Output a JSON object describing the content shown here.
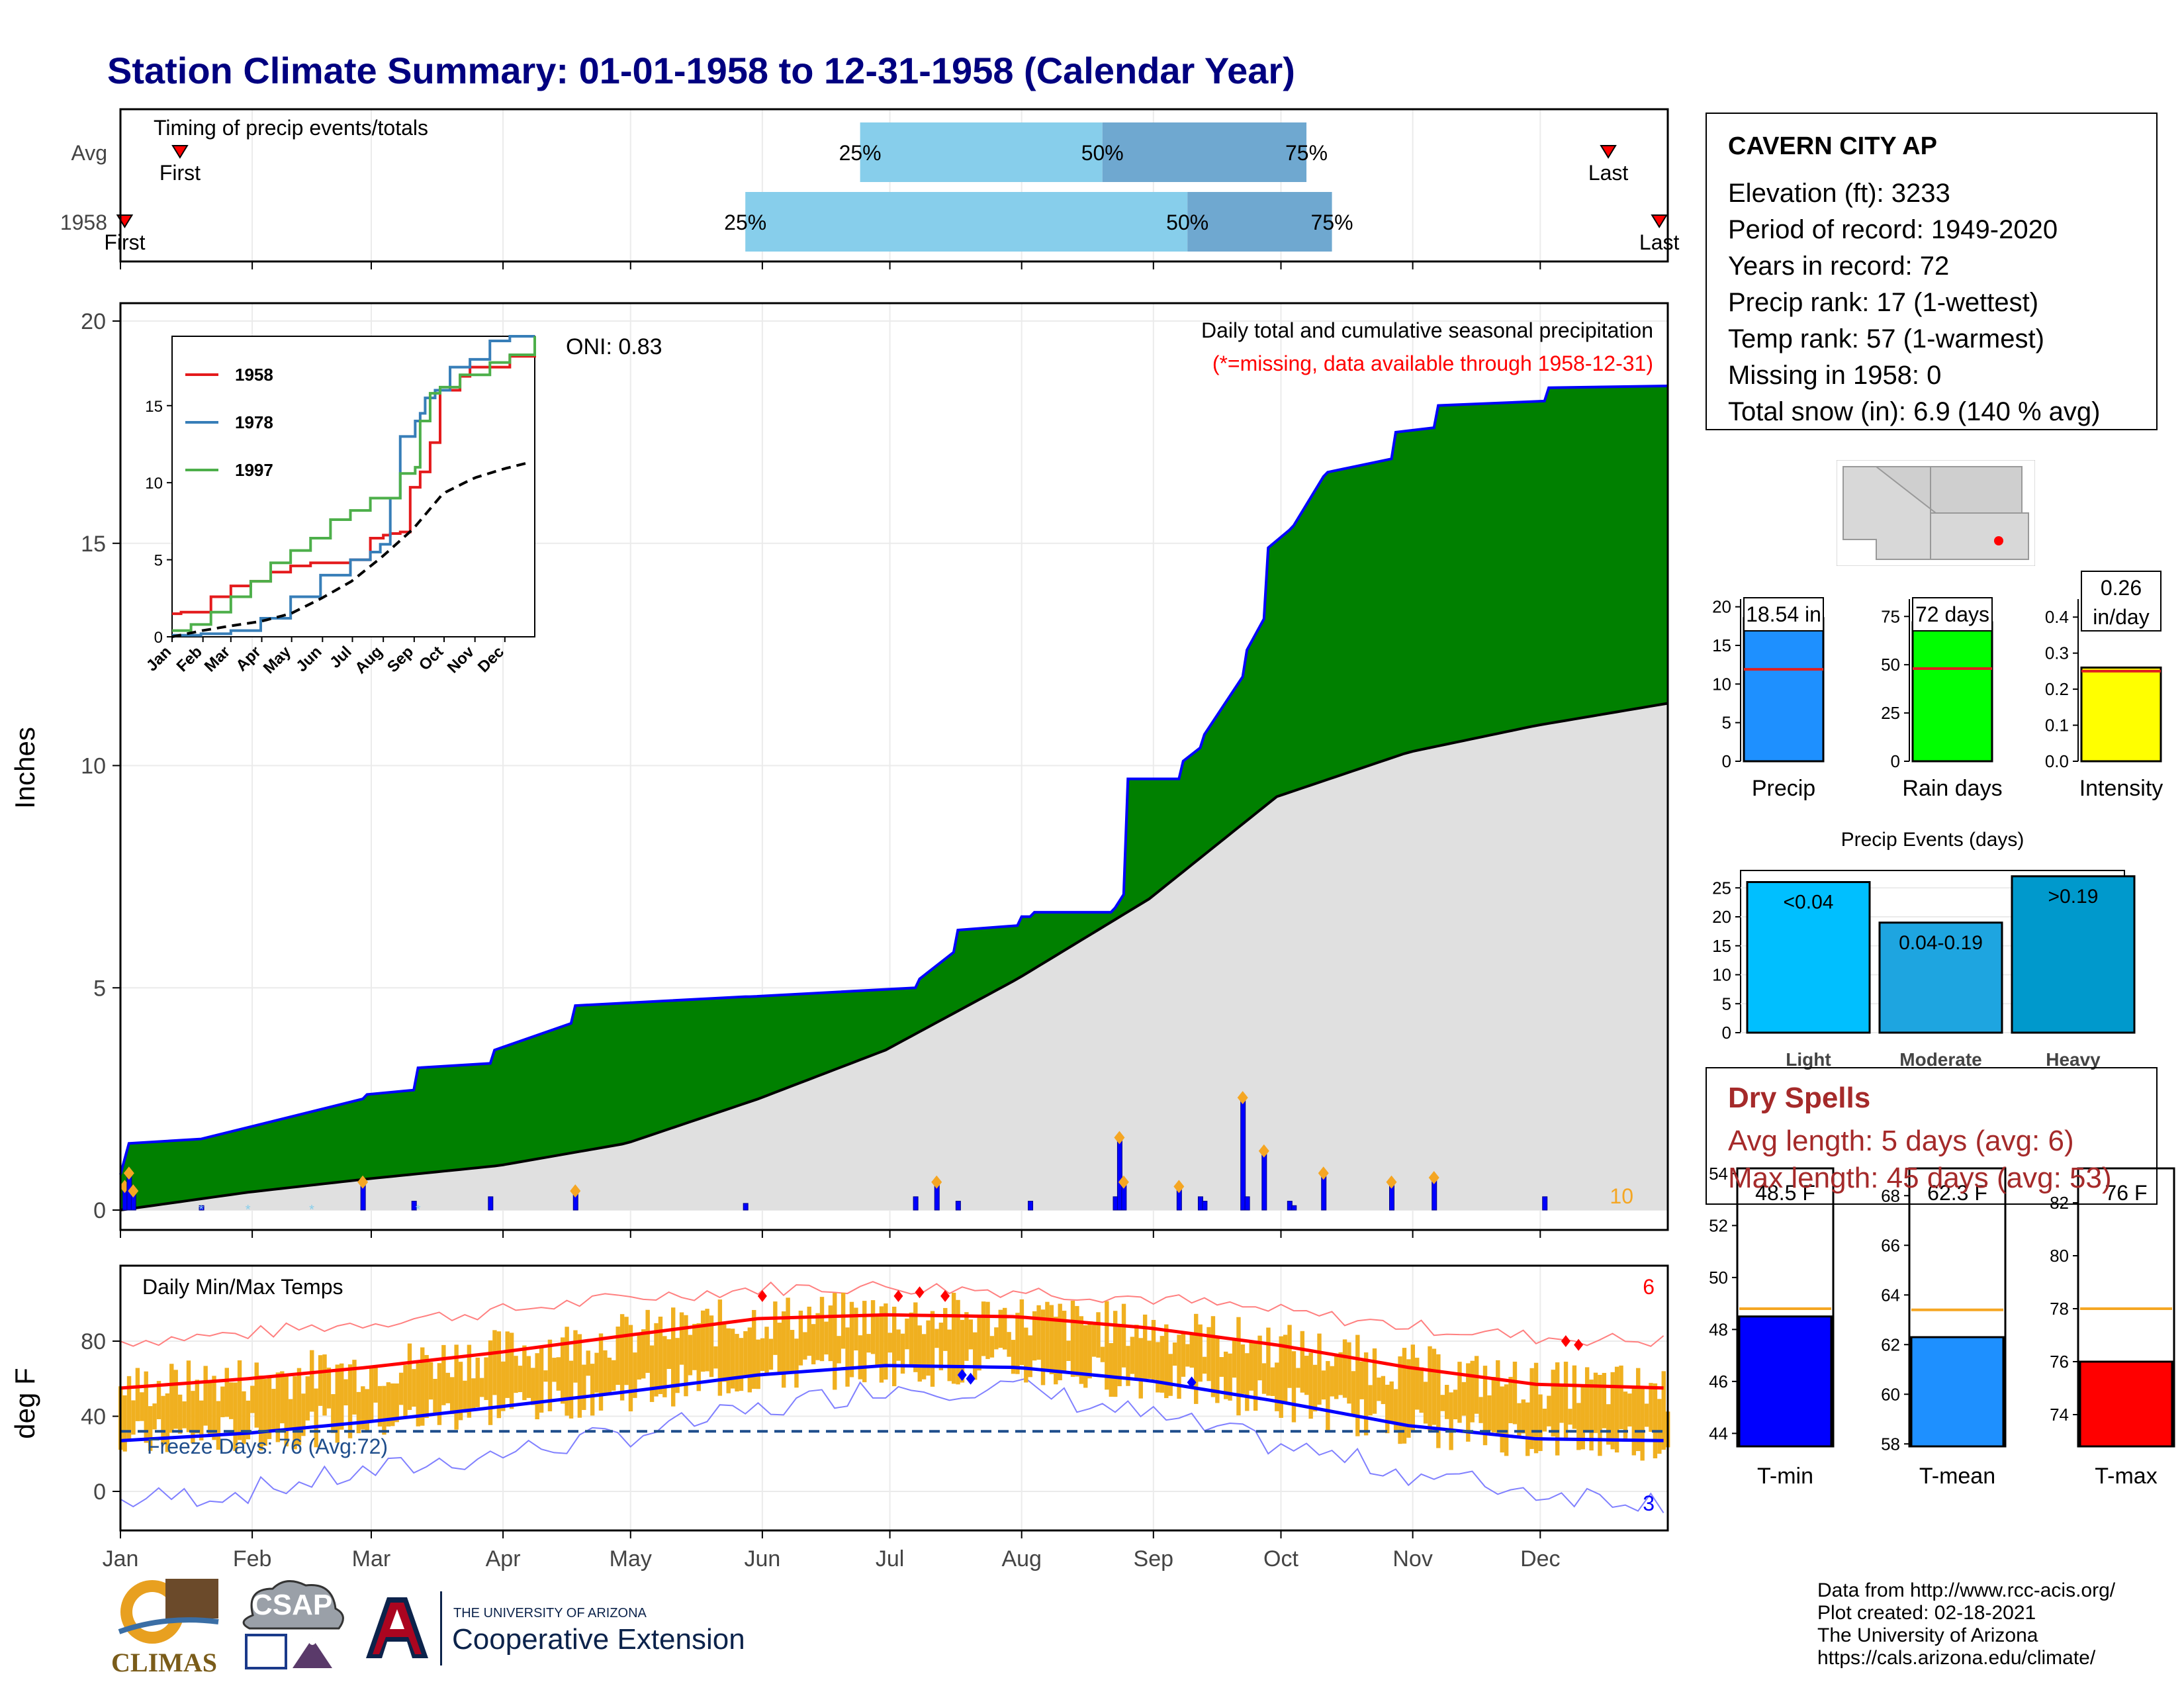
{
  "title": "Station Climate Summary: 01-01-1958 to 12-31-1958 (Calendar Year)",
  "station": {
    "name": "CAVERN CITY AP",
    "lines": [
      "Elevation (ft): 3233",
      "Period of record: 1949-2020",
      "Years in record: 72",
      "Precip rank: 17 (1-wettest)",
      "Temp rank: 57 (1-warmest)",
      "Missing in 1958: 0",
      "Total snow (in): 6.9 (140 % avg)"
    ]
  },
  "colors": {
    "title": "#000080",
    "cumulative_fill": "#008000",
    "cumulative_line": "#0000ff",
    "avg_fill": "#e0e0e0",
    "quartile_light": "#87ceeb",
    "quartile_dark": "#6fa8d0",
    "marker": "#ff0000",
    "tmax_line": "#ff0000",
    "tmin_line": "#0000ff",
    "temp_bar": "#f0b020",
    "dry_spells": "#a52a2a"
  },
  "timing_panel": {
    "label": "Timing of precip events/totals",
    "rows": [
      {
        "name": "Avg",
        "first_day": 15,
        "last_day": 351,
        "q25_day": 175,
        "q50_day": 232,
        "q75_day": 280,
        "first_label": "First",
        "last_label": "Last",
        "q25_label": "25%",
        "q50_label": "50%",
        "q75_label": "75%"
      },
      {
        "name": "1958",
        "first_day": 2,
        "last_day": 363,
        "q25_day": 148,
        "q50_day": 252,
        "q75_day": 286,
        "first_label": "First",
        "last_label": "Last",
        "q25_label": "25%",
        "q50_label": "50%",
        "q75_label": "75%"
      }
    ]
  },
  "precip_panel": {
    "ylabel": "Inches",
    "header1": "Daily total and cumulative seasonal precipitation",
    "header2": "(*=missing, data available through 1958-12-31)",
    "oni": "ONI: 0.83",
    "corner_count": "10",
    "yticks": [
      "0",
      "5",
      "10",
      "15",
      "20"
    ]
  },
  "months": [
    "Jan",
    "Feb",
    "Mar",
    "Apr",
    "May",
    "Jun",
    "Jul",
    "Aug",
    "Sep",
    "Oct",
    "Nov",
    "Dec"
  ],
  "inset": {
    "legend": [
      "1958",
      "1978",
      "1997"
    ],
    "legend_colors": [
      "#e41a1c",
      "#377eb8",
      "#4daf4a"
    ],
    "yticks": [
      "0",
      "5",
      "10",
      "15"
    ]
  },
  "temp_panel": {
    "label": "Daily Min/Max Temps",
    "ylabel": "deg F",
    "freeze": "Freeze Days: 76 (Avg:72)",
    "count_top": "6",
    "count_bottom": "3",
    "yticks": [
      "0",
      "40",
      "80"
    ]
  },
  "precip_bars": [
    {
      "category": "Precip",
      "value": "18.54 in",
      "val": 18.54,
      "avg": 11.9,
      "ticks": [
        "0",
        "5",
        "10",
        "15",
        "20"
      ],
      "max": 21,
      "color": "#1e90ff"
    },
    {
      "category": "Rain days",
      "value": "72 days",
      "val": 72,
      "avg": 48,
      "ticks": [
        "0",
        "25",
        "50",
        "75"
      ],
      "max": 84,
      "color": "#00ff00"
    },
    {
      "category": "Intensity",
      "value": "0.26",
      "value2": "in/day",
      "val": 0.26,
      "avg": 0.25,
      "ticks": [
        "0.0",
        "0.1",
        "0.2",
        "0.3",
        "0.4"
      ],
      "max": 0.45,
      "color": "#ffff00"
    }
  ],
  "events_chart": {
    "title": "Precip Events (days)",
    "categories": [
      "Light",
      "Moderate",
      "Heavy"
    ],
    "labels": [
      "<0.04",
      "0.04-0.19",
      ">0.19"
    ],
    "values": [
      26,
      19,
      27
    ],
    "colors": [
      "#00bfff",
      "#1ea5e0",
      "#0099cc"
    ],
    "yticks": [
      "0",
      "5",
      "10",
      "15",
      "20",
      "25"
    ]
  },
  "dry_spells": {
    "title": "Dry Spells",
    "avg": "Avg length: 5 days (avg: 6)",
    "max": "Max length: 45 days (avg: 53)"
  },
  "temp_bars": [
    {
      "category": "T-min",
      "value": "48.5 F",
      "val": 48.5,
      "avg": 48.8,
      "min": 43.5,
      "max": 54.2,
      "ticks": [
        "44",
        "46",
        "48",
        "50",
        "52",
        "54"
      ],
      "color": "#0000ff"
    },
    {
      "category": "T-mean",
      "value": "62.3 F",
      "val": 62.3,
      "avg": 63.4,
      "min": 57.9,
      "max": 69.1,
      "ticks": [
        "58",
        "60",
        "62",
        "64",
        "66",
        "68"
      ],
      "color": "#1e90ff"
    },
    {
      "category": "T-max",
      "value": "76 F",
      "val": 76.0,
      "avg": 78.0,
      "min": 72.8,
      "max": 83.3,
      "ticks": [
        "74",
        "76",
        "78",
        "80",
        "82"
      ],
      "color": "#ff0000"
    }
  ],
  "footer": {
    "lines": [
      "Data from http://www.rcc-acis.org/",
      "Plot created: 02-18-2021",
      "The University of Arizona",
      "https://cals.arizona.edu/climate/"
    ],
    "logo_climas": "CLIMAS",
    "logo_csap": "CSAP",
    "logo_ua1": "THE UNIVERSITY OF ARIZONA",
    "logo_ua2": "Cooperative Extension"
  },
  "chart_data": [
    {
      "type": "area",
      "title": "Daily total and cumulative seasonal precipitation",
      "ylabel": "Inches",
      "ylim": [
        0,
        20
      ],
      "x_unit": "day of year 1958",
      "series": [
        {
          "name": "1958",
          "x": [
            1,
            3,
            20,
            58,
            59,
            70,
            71,
            88,
            89,
            107,
            108,
            148,
            149,
            188,
            189,
            197,
            198,
            212,
            213,
            215,
            216,
            234,
            235,
            237,
            238,
            250,
            251,
            255,
            256,
            265,
            266,
            270,
            271,
            276,
            277,
            284,
            285,
            300,
            301,
            310,
            311,
            336,
            337,
            365
          ],
          "values": [
            0.8,
            1.5,
            1.6,
            2.5,
            2.6,
            2.7,
            3.2,
            3.3,
            3.6,
            4.2,
            4.6,
            4.8,
            4.8,
            5.0,
            5.2,
            5.8,
            6.3,
            6.4,
            6.6,
            6.6,
            6.7,
            6.7,
            6.8,
            7.1,
            9.7,
            9.7,
            10.1,
            10.4,
            10.7,
            12.0,
            12.6,
            13.3,
            14.9,
            15.3,
            15.4,
            16.5,
            16.6,
            16.9,
            17.5,
            17.6,
            18.1,
            18.2,
            18.5,
            18.54
          ]
        },
        {
          "name": "average",
          "x": [
            1,
            31,
            59,
            90,
            120,
            151,
            181,
            212,
            243,
            273,
            304,
            334,
            365
          ],
          "values": [
            0.0,
            0.4,
            0.7,
            1.0,
            1.5,
            2.5,
            3.6,
            5.2,
            7.0,
            9.3,
            10.3,
            10.9,
            11.4
          ]
        }
      ],
      "daily_totals": {
        "x": [
          2,
          3,
          4,
          20,
          58,
          70,
          88,
          108,
          148,
          188,
          193,
          198,
          215,
          235,
          236,
          237,
          250,
          255,
          256,
          265,
          266,
          270,
          276,
          277,
          284,
          300,
          310,
          336
        ],
        "values": [
          0.5,
          0.8,
          0.4,
          0.1,
          0.6,
          0.2,
          0.3,
          0.4,
          0.15,
          0.3,
          0.6,
          0.2,
          0.2,
          0.3,
          1.6,
          0.6,
          0.5,
          0.3,
          0.2,
          2.5,
          0.3,
          1.3,
          0.2,
          0.1,
          0.8,
          0.6,
          0.7,
          0.3
        ]
      }
    },
    {
      "type": "line",
      "title": "Daily Min/Max Temps",
      "ylabel": "deg F",
      "ylim": [
        -20,
        110
      ],
      "series": [
        {
          "name": "avg max",
          "x": [
            1,
            31,
            59,
            90,
            120,
            151,
            181,
            212,
            243,
            273,
            304,
            334,
            365
          ],
          "values": [
            55,
            60,
            66,
            74,
            83,
            92,
            94,
            93,
            87,
            78,
            66,
            57,
            55
          ]
        },
        {
          "name": "avg min",
          "x": [
            1,
            31,
            59,
            90,
            120,
            151,
            181,
            212,
            243,
            273,
            304,
            334,
            365
          ],
          "values": [
            27,
            31,
            37,
            45,
            53,
            62,
            67,
            66,
            59,
            48,
            35,
            28,
            27
          ]
        },
        {
          "name": "record max",
          "x": [
            1,
            31,
            59,
            90,
            120,
            151,
            181,
            212,
            243,
            273,
            304,
            334,
            365
          ],
          "values": [
            80,
            84,
            90,
            96,
            103,
            108,
            109,
            107,
            103,
            96,
            88,
            82,
            80
          ]
        },
        {
          "name": "record min",
          "x": [
            1,
            31,
            59,
            90,
            120,
            151,
            181,
            212,
            243,
            273,
            304,
            334,
            365
          ],
          "values": [
            -5,
            0,
            10,
            20,
            30,
            43,
            56,
            55,
            40,
            25,
            10,
            0,
            -5
          ]
        }
      ],
      "freeze_line": 32
    }
  ]
}
